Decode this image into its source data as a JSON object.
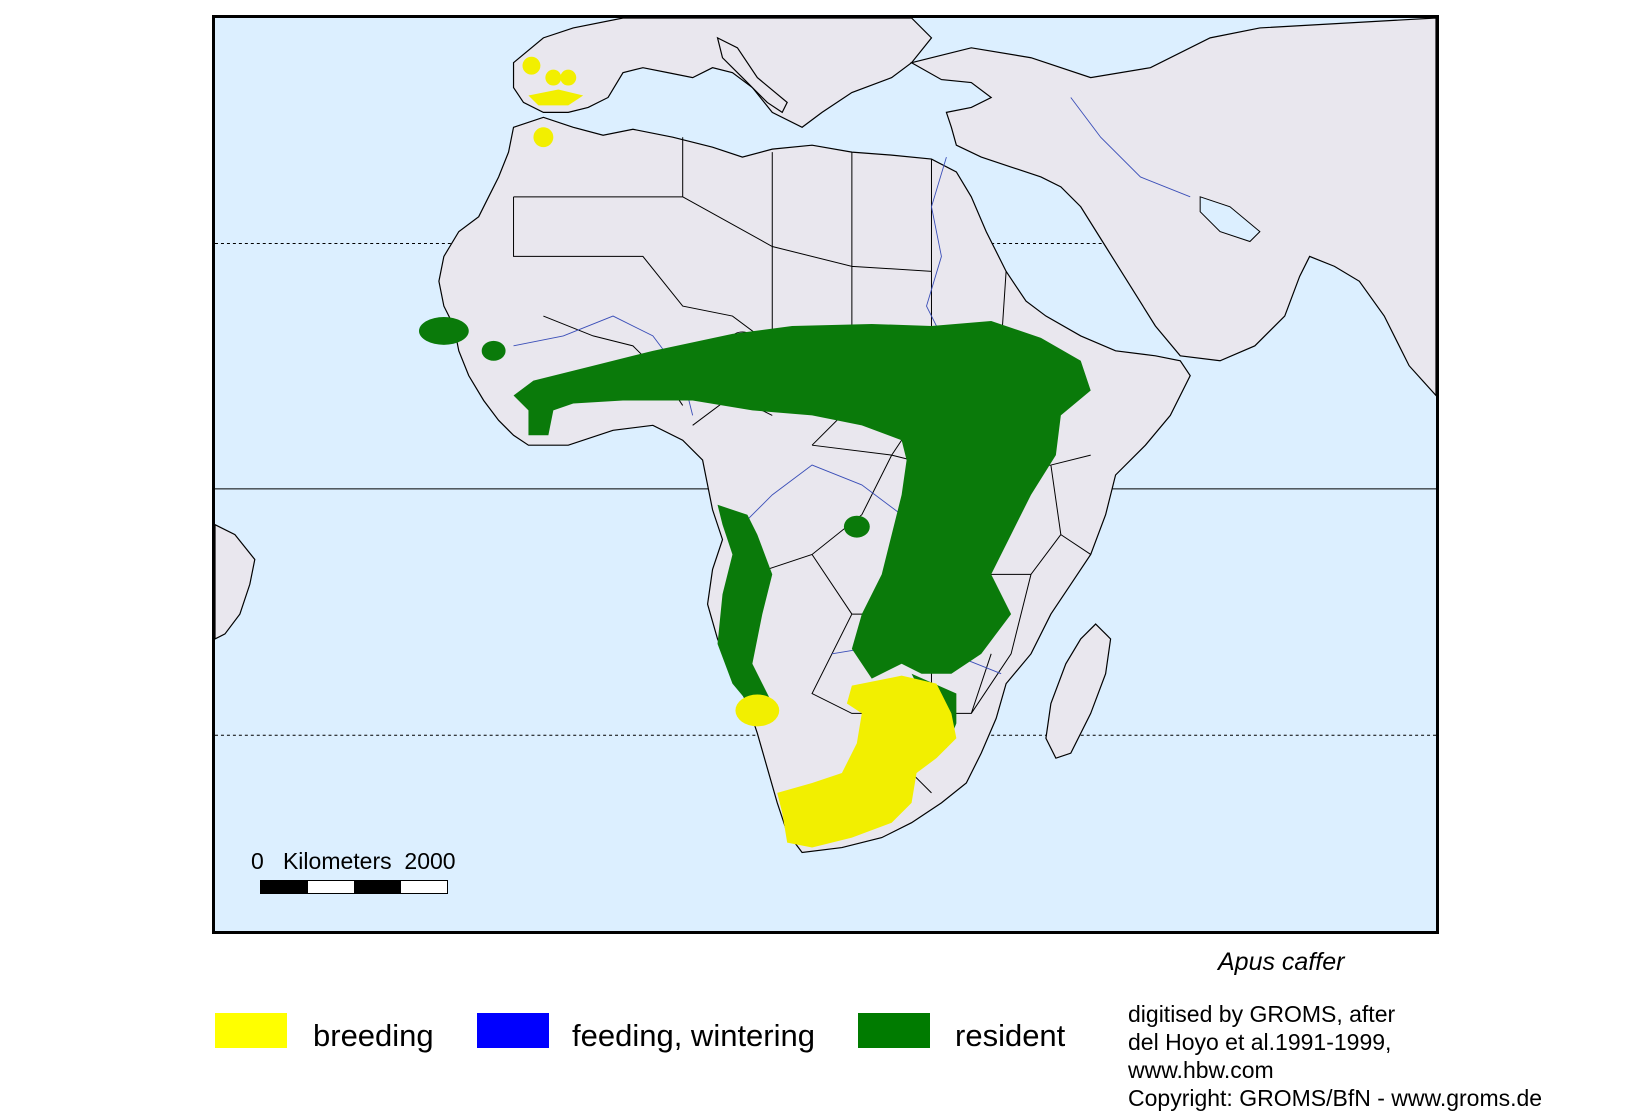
{
  "map": {
    "scale": {
      "zero": "0",
      "unit": "Kilometers",
      "max": "2000"
    },
    "species": "Apus caffer",
    "colors": {
      "water": "#dcefff",
      "land": "#e9e7ee",
      "breeding": "#f2ef00",
      "feeding": "#0000ff",
      "resident": "#0a7a0a"
    }
  },
  "legend": {
    "items": [
      {
        "label": "breeding",
        "color": "#ffff00"
      },
      {
        "label": "feeding, wintering",
        "color": "#0000ff"
      },
      {
        "label": "resident",
        "color": "#007b00"
      }
    ]
  },
  "credit": {
    "lines": [
      "digitised by GROMS, after",
      "del Hoyo et al.1991-1999,",
      "www.hbw.com",
      "Copyright: GROMS/BfN - www.groms.de"
    ]
  }
}
